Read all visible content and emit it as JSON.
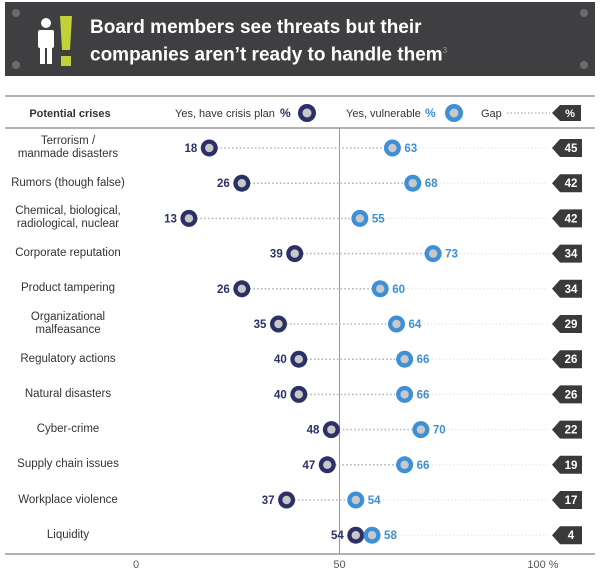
{
  "header": {
    "title_line1": "Board members see threats but their",
    "title_line2": "companies aren’t ready to handle them",
    "footnote_mark": "3"
  },
  "legend": {
    "column_header": "Potential crises",
    "plan_label": "Yes, have crisis plan",
    "plan_unit": "%",
    "vuln_label": "Yes, vulnerable",
    "vuln_unit": "%",
    "gap_label": "Gap",
    "gap_unit": "%"
  },
  "colors": {
    "plan": "#2b3166",
    "vulnerable": "#3d8fd6",
    "gap_badge": "#3a3a3a",
    "header_bg": "#3f3f41",
    "accent": "#c2d13a"
  },
  "chart_data": {
    "type": "dumbbell",
    "title": "Board members see threats but their companies aren’t ready to handle them",
    "xlim": [
      0,
      100
    ],
    "x_ticks": [
      0,
      50
    ],
    "x_tick_end_label": "100 %",
    "series_names": [
      "Yes, have crisis plan",
      "Yes, vulnerable",
      "Gap"
    ],
    "rows": [
      {
        "label": [
          "Terrorism /",
          "manmade disasters"
        ],
        "plan": 18,
        "vulnerable": 63,
        "gap": 45
      },
      {
        "label": [
          "Rumors (though false)"
        ],
        "plan": 26,
        "vulnerable": 68,
        "gap": 42
      },
      {
        "label": [
          "Chemical, biological,",
          "radiological, nuclear"
        ],
        "plan": 13,
        "vulnerable": 55,
        "gap": 42
      },
      {
        "label": [
          "Corporate reputation"
        ],
        "plan": 39,
        "vulnerable": 73,
        "gap": 34
      },
      {
        "label": [
          "Product tampering"
        ],
        "plan": 26,
        "vulnerable": 60,
        "gap": 34
      },
      {
        "label": [
          "Organizational",
          "malfeasance"
        ],
        "plan": 35,
        "vulnerable": 64,
        "gap": 29
      },
      {
        "label": [
          "Regulatory actions"
        ],
        "plan": 40,
        "vulnerable": 66,
        "gap": 26
      },
      {
        "label": [
          "Natural disasters"
        ],
        "plan": 40,
        "vulnerable": 66,
        "gap": 26
      },
      {
        "label": [
          "Cyber-crime"
        ],
        "plan": 48,
        "vulnerable": 70,
        "gap": 22
      },
      {
        "label": [
          "Supply chain issues"
        ],
        "plan": 47,
        "vulnerable": 66,
        "gap": 19
      },
      {
        "label": [
          "Workplace violence"
        ],
        "plan": 37,
        "vulnerable": 54,
        "gap": 17
      },
      {
        "label": [
          "Liquidity"
        ],
        "plan": 54,
        "vulnerable": 58,
        "gap": 4
      }
    ]
  }
}
